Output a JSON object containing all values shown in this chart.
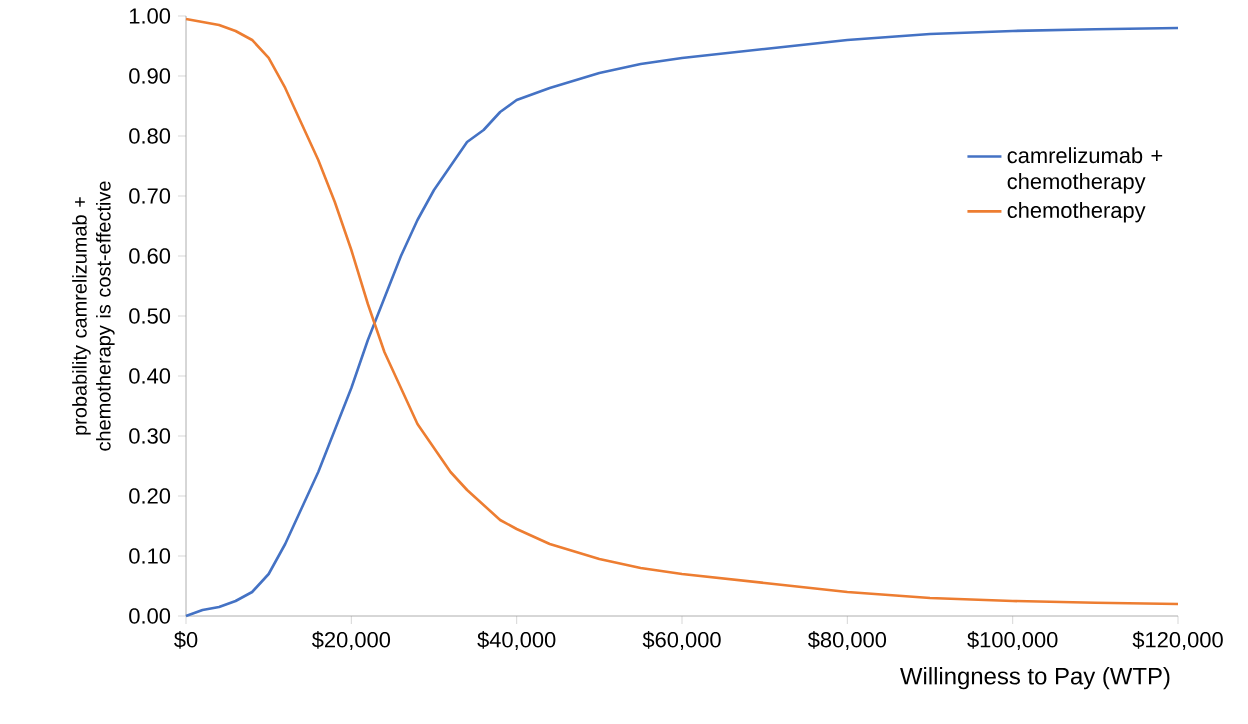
{
  "chart_data": {
    "type": "line",
    "xlabel": "Willingness to Pay  (WTP)",
    "ylabel": "probability camrelizumab + chemotherapy is cost-effective",
    "xlim": [
      0,
      120000
    ],
    "ylim": [
      0,
      1
    ],
    "xticks": [
      {
        "value": 0,
        "label": "$0"
      },
      {
        "value": 20000,
        "label": "$20,000"
      },
      {
        "value": 40000,
        "label": "$40,000"
      },
      {
        "value": 60000,
        "label": "$60,000"
      },
      {
        "value": 80000,
        "label": "$80,000"
      },
      {
        "value": 100000,
        "label": "$100,000"
      },
      {
        "value": 120000,
        "label": "$120,000"
      }
    ],
    "yticks": [
      {
        "value": 0,
        "label": "0.00"
      },
      {
        "value": 0.1,
        "label": "0.10"
      },
      {
        "value": 0.2,
        "label": "0.20"
      },
      {
        "value": 0.3,
        "label": "0.30"
      },
      {
        "value": 0.4,
        "label": "0.40"
      },
      {
        "value": 0.5,
        "label": "0.50"
      },
      {
        "value": 0.6,
        "label": "0.60"
      },
      {
        "value": 0.7,
        "label": "0.70"
      },
      {
        "value": 0.8,
        "label": "0.80"
      },
      {
        "value": 0.9,
        "label": "0.90"
      },
      {
        "value": 1,
        "label": "1.00"
      }
    ],
    "x": [
      0,
      2000,
      4000,
      6000,
      8000,
      10000,
      12000,
      14000,
      16000,
      18000,
      20000,
      22000,
      24000,
      26000,
      28000,
      30000,
      32000,
      34000,
      36000,
      38000,
      40000,
      44000,
      50000,
      55000,
      60000,
      70000,
      80000,
      90000,
      100000,
      110000,
      120000
    ],
    "legend": "right",
    "grid": false,
    "marker": "none",
    "series": [
      {
        "name": "camrelizumab + chemotherapy",
        "color": "#4472c4",
        "values": [
          0.0,
          0.01,
          0.015,
          0.025,
          0.04,
          0.07,
          0.12,
          0.18,
          0.24,
          0.31,
          0.38,
          0.46,
          0.53,
          0.6,
          0.66,
          0.71,
          0.75,
          0.79,
          0.81,
          0.84,
          0.86,
          0.88,
          0.905,
          0.92,
          0.93,
          0.945,
          0.96,
          0.97,
          0.975,
          0.978,
          0.98
        ]
      },
      {
        "name": "chemotherapy",
        "color": "#ed7d31",
        "values": [
          0.995,
          0.99,
          0.985,
          0.975,
          0.96,
          0.93,
          0.88,
          0.82,
          0.76,
          0.69,
          0.61,
          0.52,
          0.44,
          0.38,
          0.32,
          0.28,
          0.24,
          0.21,
          0.185,
          0.16,
          0.145,
          0.12,
          0.095,
          0.08,
          0.07,
          0.055,
          0.04,
          0.03,
          0.025,
          0.022,
          0.02
        ]
      }
    ]
  }
}
